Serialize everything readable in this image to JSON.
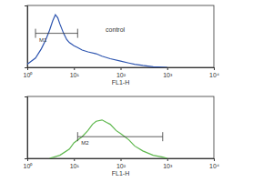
{
  "chart_data": [
    {
      "type": "line",
      "log": "x",
      "color": "#2f56b0",
      "x": [
        1,
        1.5,
        2,
        2.5,
        3,
        3.5,
        4,
        4.5,
        5,
        6,
        7,
        8,
        10,
        12,
        15,
        20,
        30,
        40,
        60,
        100,
        150,
        200,
        300,
        500,
        1000
      ],
      "values": [
        5,
        15,
        30,
        45,
        60,
        75,
        85,
        80,
        70,
        55,
        45,
        40,
        35,
        32,
        28,
        25,
        22,
        18,
        14,
        10,
        7,
        5,
        3,
        1,
        0
      ],
      "xlim": [
        1,
        10000
      ],
      "xticks": [
        {
          "value": 1,
          "label": "10⁰"
        },
        {
          "value": 10,
          "label": "10¹"
        },
        {
          "value": 100,
          "label": "10²"
        },
        {
          "value": 1000,
          "label": "10³"
        },
        {
          "value": 10000,
          "label": "10⁴"
        }
      ],
      "ylim": [
        0,
        100
      ],
      "tick_labels": "x",
      "x_label": "FL1-H",
      "gates": [
        {
          "label": "M1",
          "x": [
            1.5,
            12
          ],
          "y": 55
        }
      ],
      "annotation": "control"
    },
    {
      "type": "line",
      "log": "x",
      "color": "#5fb84e",
      "x": [
        3,
        5,
        8,
        10,
        15,
        20,
        25,
        30,
        40,
        50,
        60,
        80,
        100,
        150,
        200,
        300,
        500,
        800,
        1000
      ],
      "values": [
        0,
        5,
        15,
        25,
        35,
        45,
        55,
        60,
        62,
        58,
        55,
        45,
        40,
        30,
        20,
        12,
        5,
        2,
        0
      ],
      "xlim": [
        1,
        10000
      ],
      "xticks": [
        {
          "value": 1,
          "label": "10⁰"
        },
        {
          "value": 10,
          "label": "10¹"
        },
        {
          "value": 100,
          "label": "10²"
        },
        {
          "value": 1000,
          "label": "10³"
        },
        {
          "value": 10000,
          "label": "10⁴"
        }
      ],
      "ylim": [
        0,
        100
      ],
      "tick_labels": "x",
      "x_label": "FL1-H",
      "gates": [
        {
          "label": "M2",
          "x": [
            12,
            800
          ],
          "y": 35
        }
      ]
    }
  ]
}
